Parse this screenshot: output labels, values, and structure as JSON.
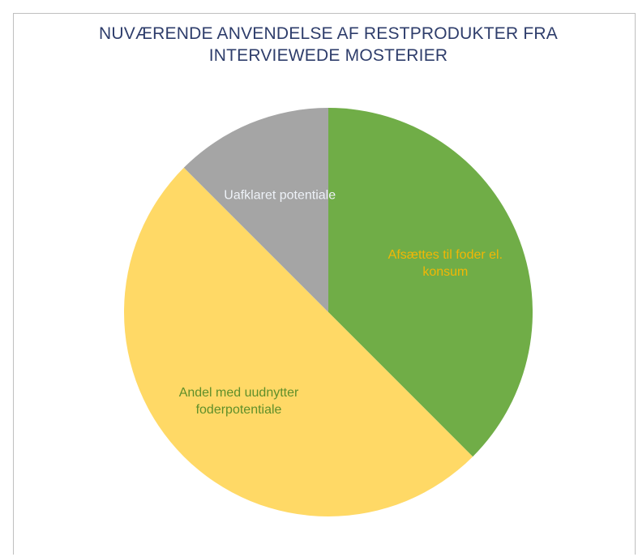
{
  "chart_data": {
    "type": "pie",
    "title": "NUVÆRENDE ANVENDELSE AF RESTPRODUKTER FRA INTERVIEWEDE MOSTERIER",
    "categories": [
      "Afsættes til foder el. konsum",
      "Andel med uudnytter foderpotentiale",
      "Uafklaret potentiale"
    ],
    "values": [
      37.5,
      50,
      12.5
    ],
    "colors": [
      "#70ad47",
      "#ffd966",
      "#a5a5a5"
    ],
    "label_colors": [
      "#f2b705",
      "#5f8f2a",
      "#eef2f8"
    ]
  }
}
